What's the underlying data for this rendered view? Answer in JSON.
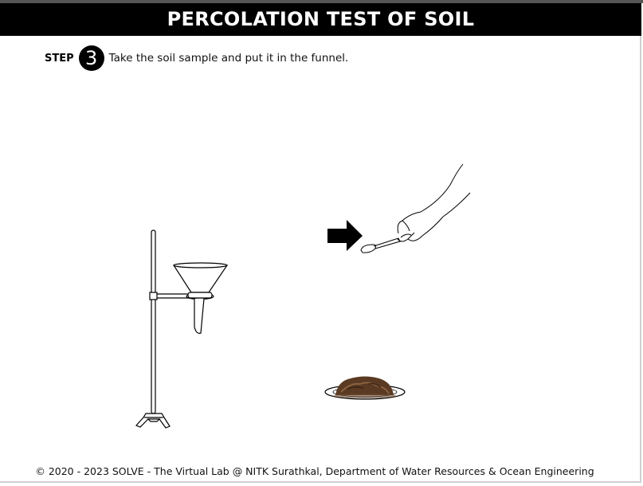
{
  "header": {
    "title": "PERCOLATION TEST OF SOIL"
  },
  "step": {
    "label": "STEP",
    "number": "3",
    "instruction": "Take the soil sample and put it in the funnel."
  },
  "scene": {
    "items": [
      {
        "name": "retort-stand-with-funnel"
      },
      {
        "name": "arrow-right-icon"
      },
      {
        "name": "hand-with-spoon"
      },
      {
        "name": "soil-sample-on-plate"
      }
    ],
    "colors": {
      "soil": "#5a3a22",
      "soil_light": "#8a6240",
      "ink": "#000000"
    }
  },
  "footer": {
    "text": "© 2020 - 2023 SOLVE - The Virtual Lab @ NITK Surathkal, Department of Water Resources & Ocean Engineering"
  }
}
